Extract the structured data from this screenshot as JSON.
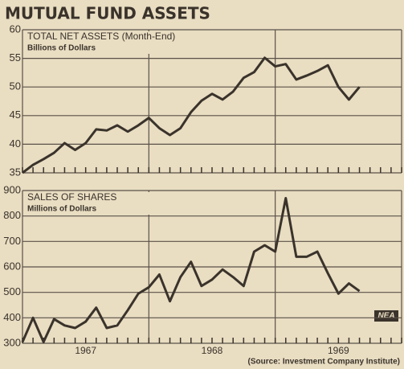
{
  "title": "MUTUAL FUND ASSETS",
  "source": "(Source: Investment Company Institute)",
  "logo": "NEA",
  "chart_data": [
    {
      "type": "line",
      "title": "TOTAL NET ASSETS (Month-End)",
      "subtitle": "Billions of Dollars",
      "x": [
        0,
        1,
        2,
        3,
        4,
        5,
        6,
        7,
        8,
        9,
        10,
        11,
        12,
        13,
        14,
        15,
        16,
        17,
        18,
        19,
        20,
        21,
        22,
        23,
        24,
        25,
        26,
        27,
        28,
        29,
        30,
        31,
        32
      ],
      "values": [
        35,
        36.4,
        37.4,
        38.5,
        40.2,
        39,
        40.2,
        42.6,
        42.4,
        43.3,
        42.2,
        43.3,
        44.6,
        42.8,
        41.6,
        42.8,
        45.6,
        47.6,
        48.8,
        47.8,
        49.2,
        51.6,
        52.6,
        55.1,
        53.6,
        54,
        51.3,
        52,
        52.8,
        53.8,
        50,
        47.8,
        50
      ],
      "color": "#3a332b",
      "xlim": [
        0,
        36
      ],
      "xgrid": [
        0,
        12,
        24,
        36
      ],
      "ylim": [
        35,
        60
      ],
      "yticks": [
        35,
        40,
        45,
        50,
        55,
        60
      ],
      "grid": true
    },
    {
      "type": "line",
      "title": "SALES OF SHARES",
      "subtitle": "Millions of Dollars",
      "x": [
        0,
        1,
        2,
        3,
        4,
        5,
        6,
        7,
        8,
        9,
        10,
        11,
        12,
        13,
        14,
        15,
        16,
        17,
        18,
        19,
        20,
        21,
        22,
        23,
        24,
        25,
        26,
        27,
        28,
        29,
        30,
        31,
        32
      ],
      "values": [
        305,
        400,
        305,
        395,
        370,
        360,
        385,
        440,
        360,
        370,
        430,
        495,
        520,
        570,
        465,
        560,
        620,
        525,
        550,
        590,
        560,
        525,
        660,
        685,
        660,
        870,
        640,
        640,
        660,
        575,
        495,
        535,
        505
      ],
      "color": "#3a332b",
      "xlim": [
        0,
        36
      ],
      "xgrid": [
        0,
        12,
        24,
        36
      ],
      "xticks": [
        {
          "value": 6,
          "label": "1967"
        },
        {
          "value": 18,
          "label": "1968"
        },
        {
          "value": 30,
          "label": "1969"
        }
      ],
      "ylim": [
        300,
        900
      ],
      "yticks": [
        300,
        400,
        500,
        600,
        700,
        800,
        900
      ],
      "grid": true
    }
  ]
}
